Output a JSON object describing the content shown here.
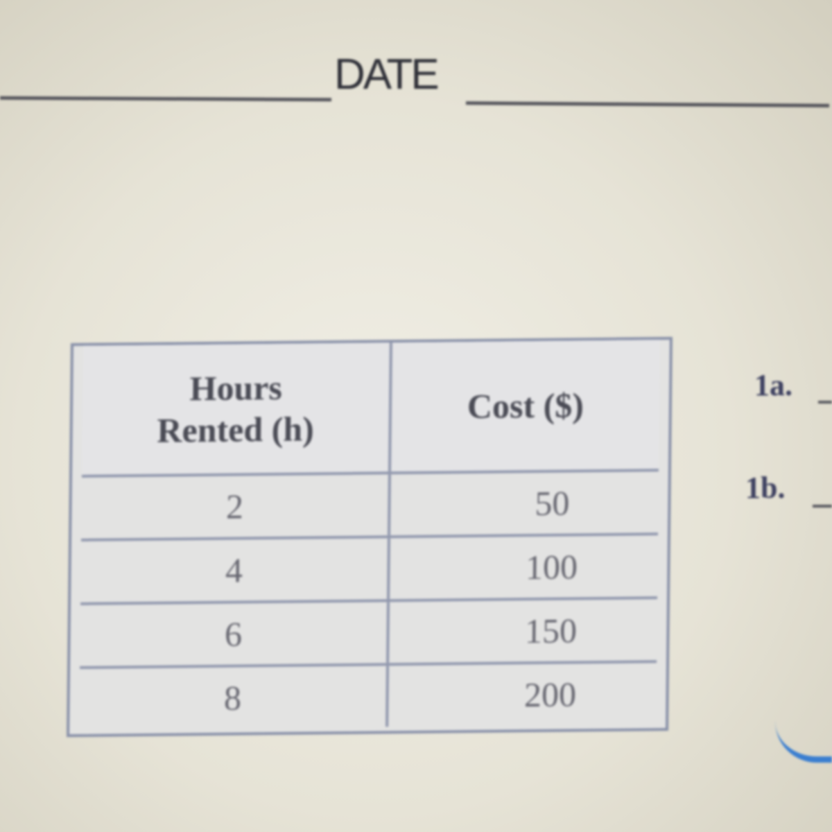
{
  "header": {
    "date_label": "DATE"
  },
  "table": {
    "columns": [
      "Hours Rented (h)",
      "Cost ($)"
    ],
    "column_lines": [
      [
        "Hours",
        "Rented (h)"
      ],
      [
        "Cost ($)"
      ]
    ],
    "rows": [
      [
        "2",
        "50"
      ],
      [
        "4",
        "100"
      ],
      [
        "6",
        "150"
      ],
      [
        "8",
        "200"
      ]
    ]
  },
  "questions": [
    "1a.",
    "1b."
  ],
  "colors": {
    "text": "#3a3d4a",
    "table_border": "#9097ad",
    "pen_mark": "#3a7ed0"
  }
}
